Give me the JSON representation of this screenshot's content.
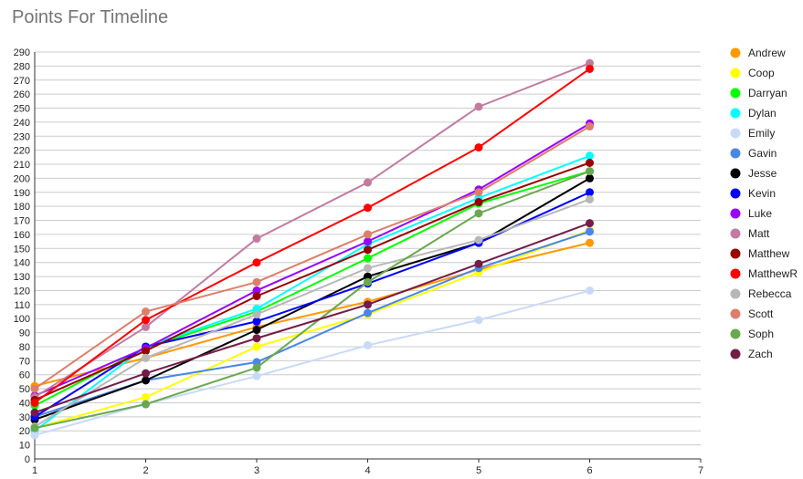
{
  "chart_data": {
    "type": "line",
    "title": "Points For Timeline",
    "xlabel": "",
    "ylabel": "",
    "x": [
      1,
      2,
      3,
      4,
      5,
      6
    ],
    "xlim": [
      1,
      7
    ],
    "xticks": [
      1,
      2,
      3,
      4,
      5,
      6,
      7
    ],
    "ylim": [
      0,
      290
    ],
    "ytick_step": 10,
    "grid": true,
    "legend_position": "right",
    "series": [
      {
        "name": "Andrew",
        "color": "#ff9900",
        "values": [
          52,
          72,
          94,
          112,
          135,
          154
        ]
      },
      {
        "name": "Coop",
        "color": "#ffff00",
        "values": [
          22,
          44,
          80,
          103,
          133,
          163
        ]
      },
      {
        "name": "Darryan",
        "color": "#00ff00",
        "values": [
          38,
          79,
          105,
          143,
          182,
          205
        ]
      },
      {
        "name": "Dylan",
        "color": "#00ffff",
        "values": [
          20,
          80,
          107,
          153,
          186,
          216
        ]
      },
      {
        "name": "Emily",
        "color": "#c9daf8",
        "values": [
          17,
          39,
          59,
          81,
          99,
          120
        ]
      },
      {
        "name": "Gavin",
        "color": "#4a86e8",
        "values": [
          30,
          56,
          69,
          104,
          136,
          162
        ]
      },
      {
        "name": "Jesse",
        "color": "#000000",
        "values": [
          28,
          56,
          92,
          130,
          154,
          200
        ]
      },
      {
        "name": "Kevin",
        "color": "#0000ff",
        "values": [
          30,
          80,
          98,
          125,
          154,
          190
        ]
      },
      {
        "name": "Luke",
        "color": "#9900ff",
        "values": [
          45,
          79,
          120,
          155,
          192,
          239
        ]
      },
      {
        "name": "Matt",
        "color": "#c27ba0",
        "values": [
          44,
          94,
          157,
          197,
          251,
          282
        ]
      },
      {
        "name": "Matthew",
        "color": "#990000",
        "values": [
          42,
          77,
          116,
          149,
          183,
          211
        ]
      },
      {
        "name": "MatthewR",
        "color": "#ff0000",
        "values": [
          40,
          99,
          140,
          179,
          222,
          278
        ]
      },
      {
        "name": "Rebecca",
        "color": "#b7b7b7",
        "values": [
          23,
          72,
          103,
          136,
          156,
          185
        ]
      },
      {
        "name": "Scott",
        "color": "#dd7e6b",
        "values": [
          50,
          105,
          126,
          160,
          190,
          237
        ]
      },
      {
        "name": "Soph",
        "color": "#6aa84f",
        "values": [
          22,
          39,
          65,
          126,
          175,
          205
        ]
      },
      {
        "name": "Zach",
        "color": "#741b47",
        "values": [
          33,
          61,
          86,
          110,
          139,
          168
        ]
      }
    ]
  }
}
